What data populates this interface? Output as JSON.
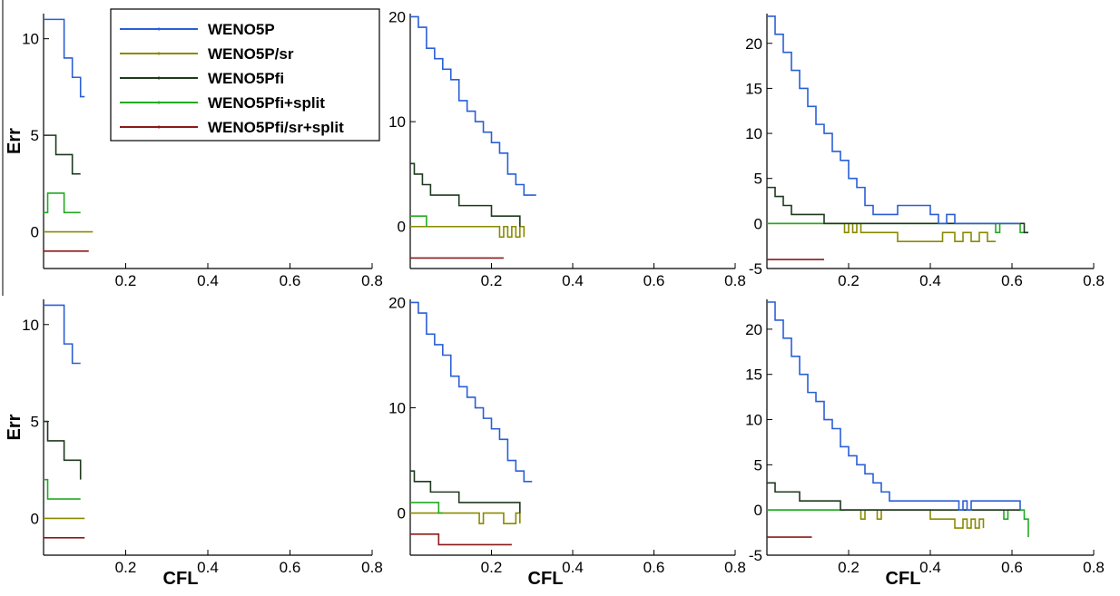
{
  "figure": {
    "x_label": "CFL",
    "y_label": "Err"
  },
  "legend": {
    "entries": [
      {
        "name": "WENO5P",
        "color": "#2a5fd6"
      },
      {
        "name": "WENO5P/sr",
        "color": "#8a8a00"
      },
      {
        "name": "WENO5Pfi",
        "color": "#1e3a1e"
      },
      {
        "name": "WENO5Pfi+split",
        "color": "#22aa22"
      },
      {
        "name": "WENO5Pfi/sr+split",
        "color": "#8b1a1a"
      }
    ]
  },
  "chart_data": [
    {
      "type": "line",
      "xlim": [
        0,
        0.8
      ],
      "ylim": [
        -1.9,
        11.3
      ],
      "x_ticks": [
        0.2,
        0.4,
        0.6,
        0.8
      ],
      "y_ticks": [
        0,
        5,
        10
      ],
      "y_label": "Err",
      "x_label": "",
      "series": [
        {
          "name": "WENO5P",
          "x": [
            0.0,
            0.02,
            0.03,
            0.05,
            0.07,
            0.09,
            0.1
          ],
          "y": [
            11,
            11,
            11,
            9,
            8,
            7,
            7
          ]
        },
        {
          "name": "WENO5Pfi",
          "x": [
            0.0,
            0.01,
            0.03,
            0.05,
            0.07,
            0.09
          ],
          "y": [
            5,
            5,
            4,
            4,
            3,
            3
          ]
        },
        {
          "name": "WENO5Pfi+split",
          "x": [
            0.0,
            0.01,
            0.03,
            0.05,
            0.09
          ],
          "y": [
            1,
            2,
            2,
            1,
            1
          ]
        },
        {
          "name": "WENO5P/sr",
          "x": [
            0.0,
            0.12
          ],
          "y": [
            0,
            0
          ]
        },
        {
          "name": "WENO5Pfi/sr+split",
          "x": [
            0.0,
            0.11
          ],
          "y": [
            -1,
            -1
          ]
        }
      ]
    },
    {
      "type": "line",
      "xlim": [
        0,
        0.8
      ],
      "ylim": [
        -4,
        20.3
      ],
      "x_ticks": [
        0.2,
        0.4,
        0.6,
        0.8
      ],
      "y_ticks": [
        0,
        10,
        20
      ],
      "y_label": "",
      "x_label": "",
      "series": [
        {
          "name": "WENO5P",
          "x": [
            0.0,
            0.02,
            0.04,
            0.06,
            0.08,
            0.1,
            0.12,
            0.14,
            0.16,
            0.18,
            0.2,
            0.22,
            0.24,
            0.26,
            0.28,
            0.31
          ],
          "y": [
            20,
            19,
            17,
            16,
            15,
            14,
            12,
            11,
            10,
            9,
            8,
            7,
            5,
            4,
            3,
            3
          ]
        },
        {
          "name": "WENO5Pfi",
          "x": [
            0.0,
            0.01,
            0.03,
            0.05,
            0.08,
            0.12,
            0.16,
            0.2,
            0.25,
            0.27
          ],
          "y": [
            6,
            5,
            4,
            3,
            3,
            2,
            2,
            1,
            1,
            0
          ]
        },
        {
          "name": "WENO5Pfi+split",
          "x": [
            0.0,
            0.02,
            0.03,
            0.04
          ],
          "y": [
            1,
            1,
            1,
            0
          ]
        },
        {
          "name": "WENO5P/sr",
          "x": [
            0.0,
            0.21,
            0.22,
            0.23,
            0.24,
            0.25,
            0.26,
            0.27,
            0.28
          ],
          "y": [
            0,
            0,
            -1,
            0,
            -1,
            0,
            -1,
            0,
            -1
          ]
        },
        {
          "name": "WENO5Pfi/sr+split",
          "x": [
            0.0,
            0.07,
            0.2,
            0.23
          ],
          "y": [
            -3,
            -3,
            -3,
            -3
          ]
        }
      ]
    },
    {
      "type": "line",
      "xlim": [
        0,
        0.8
      ],
      "ylim": [
        -5,
        23.3
      ],
      "x_ticks": [
        0.2,
        0.4,
        0.6,
        0.8
      ],
      "y_ticks": [
        -5,
        0,
        5,
        10,
        15,
        20
      ],
      "y_label": "",
      "x_label": "",
      "series": [
        {
          "name": "WENO5P",
          "x": [
            0.0,
            0.02,
            0.04,
            0.06,
            0.08,
            0.1,
            0.12,
            0.14,
            0.16,
            0.18,
            0.2,
            0.22,
            0.24,
            0.26,
            0.3,
            0.32,
            0.4,
            0.42,
            0.44,
            0.46,
            0.62
          ],
          "y": [
            23,
            21,
            19,
            17,
            15,
            13,
            11,
            10,
            8,
            7,
            5,
            4,
            2,
            1,
            1,
            2,
            1,
            0,
            1,
            0,
            0
          ]
        },
        {
          "name": "WENO5Pfi",
          "x": [
            0.0,
            0.02,
            0.04,
            0.06,
            0.1,
            0.14,
            0.18,
            0.22,
            0.26,
            0.3,
            0.4,
            0.5,
            0.6,
            0.63,
            0.64
          ],
          "y": [
            4,
            3,
            2,
            1,
            1,
            0,
            0,
            0,
            0,
            0,
            0,
            0,
            0,
            -1,
            -1
          ]
        },
        {
          "name": "WENO5Pfi+split",
          "x": [
            0.0,
            0.55,
            0.56,
            0.57,
            0.6,
            0.62,
            0.64
          ],
          "y": [
            0,
            0,
            -1,
            0,
            0,
            -1,
            -1
          ]
        },
        {
          "name": "WENO5P/sr",
          "x": [
            0.0,
            0.18,
            0.19,
            0.2,
            0.21,
            0.22,
            0.23,
            0.32,
            0.43,
            0.46,
            0.48,
            0.5,
            0.52,
            0.54,
            0.56
          ],
          "y": [
            0,
            0,
            -1,
            0,
            -1,
            0,
            -1,
            -2,
            -1,
            -2,
            -1,
            -2,
            -1,
            -2,
            -2
          ]
        },
        {
          "name": "WENO5Pfi/sr+split",
          "x": [
            0.0,
            0.14
          ],
          "y": [
            -4,
            -4
          ]
        }
      ]
    },
    {
      "type": "line",
      "xlim": [
        0,
        0.8
      ],
      "ylim": [
        -1.9,
        11.3
      ],
      "x_ticks": [
        0.2,
        0.4,
        0.6,
        0.8
      ],
      "y_ticks": [
        0,
        5,
        10
      ],
      "y_label": "Err",
      "x_label": "CFL",
      "series": [
        {
          "name": "WENO5P",
          "x": [
            0.0,
            0.02,
            0.03,
            0.05,
            0.07,
            0.09
          ],
          "y": [
            11,
            11,
            11,
            9,
            8,
            8
          ]
        },
        {
          "name": "WENO5Pfi",
          "x": [
            0.0,
            0.01,
            0.03,
            0.05,
            0.07,
            0.09
          ],
          "y": [
            5,
            4,
            4,
            3,
            3,
            2
          ]
        },
        {
          "name": "WENO5Pfi+split",
          "x": [
            0.0,
            0.01,
            0.09
          ],
          "y": [
            2,
            1,
            1
          ]
        },
        {
          "name": "WENO5P/sr",
          "x": [
            0.0,
            0.1
          ],
          "y": [
            0,
            0
          ]
        },
        {
          "name": "WENO5Pfi/sr+split",
          "x": [
            0.0,
            0.1
          ],
          "y": [
            -1,
            -1
          ]
        }
      ]
    },
    {
      "type": "line",
      "xlim": [
        0,
        0.8
      ],
      "ylim": [
        -4,
        20.3
      ],
      "x_ticks": [
        0.2,
        0.4,
        0.6,
        0.8
      ],
      "y_ticks": [
        0,
        10,
        20
      ],
      "y_label": "",
      "x_label": "CFL",
      "series": [
        {
          "name": "WENO5P",
          "x": [
            0.0,
            0.02,
            0.04,
            0.06,
            0.08,
            0.1,
            0.12,
            0.14,
            0.16,
            0.18,
            0.2,
            0.22,
            0.24,
            0.26,
            0.28,
            0.3
          ],
          "y": [
            20,
            19,
            17,
            16,
            15,
            13,
            12,
            11,
            10,
            9,
            8,
            7,
            5,
            4,
            3,
            3
          ]
        },
        {
          "name": "WENO5Pfi",
          "x": [
            0.0,
            0.01,
            0.03,
            0.05,
            0.08,
            0.12,
            0.16,
            0.2,
            0.26,
            0.27
          ],
          "y": [
            4,
            3,
            3,
            2,
            2,
            1,
            1,
            1,
            1,
            0
          ]
        },
        {
          "name": "WENO5Pfi+split",
          "x": [
            0.0,
            0.06,
            0.07,
            0.08
          ],
          "y": [
            1,
            1,
            0,
            0
          ]
        },
        {
          "name": "WENO5P/sr",
          "x": [
            0.0,
            0.16,
            0.17,
            0.18,
            0.22,
            0.23,
            0.25,
            0.26,
            0.27
          ],
          "y": [
            0,
            0,
            -1,
            0,
            0,
            -1,
            -1,
            0,
            -1
          ]
        },
        {
          "name": "WENO5Pfi/sr+split",
          "x": [
            0.0,
            0.05,
            0.06,
            0.07,
            0.08,
            0.19,
            0.25
          ],
          "y": [
            -2,
            -2,
            -2,
            -3,
            -3,
            -3,
            -3
          ]
        }
      ]
    },
    {
      "type": "line",
      "xlim": [
        0,
        0.8
      ],
      "ylim": [
        -5,
        23.3
      ],
      "x_ticks": [
        0.2,
        0.4,
        0.6,
        0.8
      ],
      "y_ticks": [
        -5,
        0,
        5,
        10,
        15,
        20
      ],
      "y_label": "",
      "x_label": "CFL",
      "series": [
        {
          "name": "WENO5P",
          "x": [
            0.0,
            0.02,
            0.04,
            0.06,
            0.08,
            0.1,
            0.12,
            0.14,
            0.16,
            0.18,
            0.2,
            0.22,
            0.24,
            0.26,
            0.28,
            0.3,
            0.35,
            0.47,
            0.48,
            0.49,
            0.5,
            0.62
          ],
          "y": [
            23,
            21,
            19,
            17,
            15,
            13,
            12,
            10,
            9,
            7,
            6,
            5,
            4,
            3,
            2,
            1,
            1,
            0,
            1,
            0,
            1,
            0
          ]
        },
        {
          "name": "WENO5Pfi",
          "x": [
            0.0,
            0.02,
            0.04,
            0.08,
            0.12,
            0.18,
            0.25,
            0.3,
            0.4,
            0.5,
            0.62
          ],
          "y": [
            3,
            2,
            2,
            1,
            1,
            0,
            0,
            0,
            0,
            0,
            0
          ]
        },
        {
          "name": "WENO5Pfi+split",
          "x": [
            0.0,
            0.57,
            0.58,
            0.59,
            0.62,
            0.63,
            0.64
          ],
          "y": [
            0,
            0,
            -1,
            0,
            0,
            -1,
            -3
          ]
        },
        {
          "name": "WENO5P/sr",
          "x": [
            0.0,
            0.22,
            0.23,
            0.24,
            0.26,
            0.27,
            0.28,
            0.4,
            0.46,
            0.48,
            0.49,
            0.5,
            0.51,
            0.52,
            0.53
          ],
          "y": [
            0,
            0,
            -1,
            0,
            0,
            -1,
            0,
            -1,
            -2,
            -1,
            -2,
            -1,
            -2,
            -1,
            -2
          ]
        },
        {
          "name": "WENO5Pfi/sr+split",
          "x": [
            0.0,
            0.11
          ],
          "y": [
            -3,
            -3
          ]
        }
      ]
    }
  ]
}
